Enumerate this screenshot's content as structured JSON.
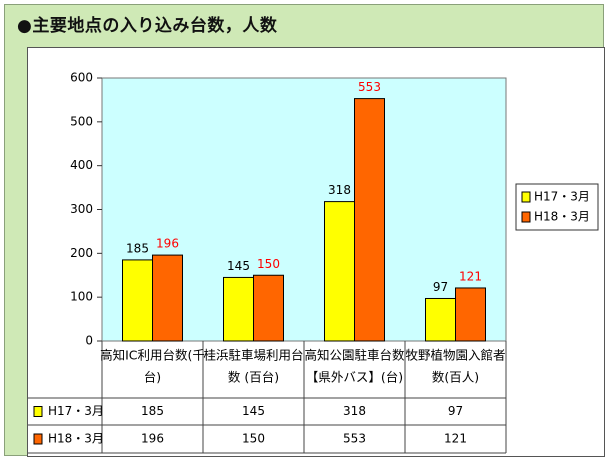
{
  "title": "●主要地点の入り込み台数，人数",
  "chart_data": {
    "type": "bar",
    "categories": [
      [
        "高知IC利用台数(千",
        "台)"
      ],
      [
        "桂浜駐車場利用台",
        "数 (百台)"
      ],
      [
        "高知公園駐車台数",
        "【県外バス】(台)"
      ],
      [
        "牧野植物園入館者",
        "数(百人)"
      ]
    ],
    "series": [
      {
        "name": "H17・3月",
        "values": [
          185,
          145,
          318,
          97
        ],
        "color": "#ffff00",
        "label_color": "#000000"
      },
      {
        "name": "H18・3月",
        "values": [
          196,
          150,
          553,
          121
        ],
        "color": "#ff6600",
        "label_color": "#ff0000"
      }
    ],
    "ylim": [
      0,
      600
    ],
    "yticks": [
      0,
      100,
      200,
      300,
      400,
      500,
      600
    ],
    "plot_bg": "#ccffff",
    "grid": false,
    "legend": "right",
    "data_table": true,
    "data_labels": [
      [
        "185",
        "196"
      ],
      [
        "145",
        "150"
      ],
      [
        "318",
        "553"
      ],
      [
        "97",
        "121"
      ]
    ],
    "ytick_labels": [
      "0",
      "100",
      "200",
      "300",
      "400",
      "500",
      "600"
    ]
  },
  "colors": {
    "background": "#cfe9b6",
    "h17": "#ffff00",
    "h18": "#ff6600"
  }
}
